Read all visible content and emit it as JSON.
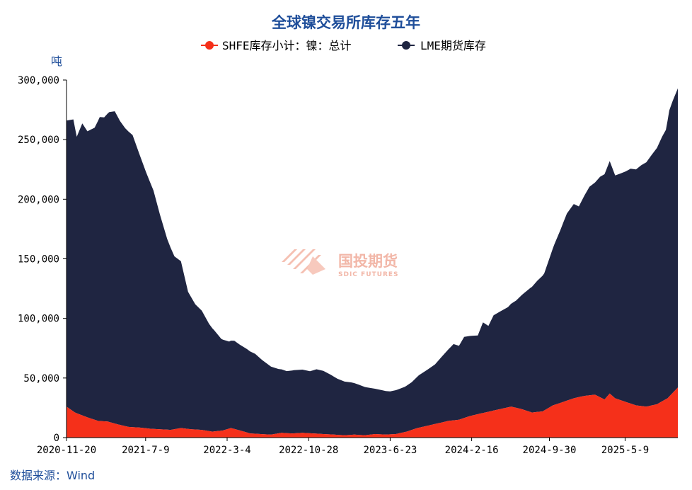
{
  "chart_data": {
    "type": "area",
    "stacked": true,
    "title": "全球镍交易所库存五年",
    "ylabel": "吨",
    "ylim": [
      0,
      300000
    ],
    "yticks": [
      "0",
      "50,000",
      "100,000",
      "150,000",
      "200,000",
      "250,000",
      "300,000"
    ],
    "yticks_values": [
      0,
      50000,
      100000,
      150000,
      200000,
      250000,
      300000
    ],
    "xlim": [
      "2020-11-20",
      "2025-10-10"
    ],
    "xticks": [
      "2020-11-20",
      "2021-7-9",
      "2022-3-4",
      "2022-10-28",
      "2023-6-23",
      "2024-2-16",
      "2024-9-30",
      "2025-5-9"
    ],
    "legend_position": "top-center",
    "grid": false,
    "series": [
      {
        "name": "SHFE库存小计：镍：总计",
        "color": "#f5301a",
        "points": [
          [
            "2020-11-20",
            26000
          ],
          [
            "2020-12-15",
            21000
          ],
          [
            "2021-1-20",
            17000
          ],
          [
            "2021-2-20",
            14000
          ],
          [
            "2021-3-20",
            13500
          ],
          [
            "2021-4-20",
            11000
          ],
          [
            "2021-5-20",
            9000
          ],
          [
            "2021-6-20",
            8500
          ],
          [
            "2021-7-20",
            7500
          ],
          [
            "2021-8-20",
            7000
          ],
          [
            "2021-9-20",
            6500
          ],
          [
            "2021-10-20",
            8000
          ],
          [
            "2021-11-20",
            7000
          ],
          [
            "2021-12-20",
            6500
          ],
          [
            "2022-1-20",
            5000
          ],
          [
            "2022-2-20",
            6000
          ],
          [
            "2022-3-15",
            8000
          ],
          [
            "2022-4-10",
            6000
          ],
          [
            "2022-5-10",
            3500
          ],
          [
            "2022-6-10",
            3000
          ],
          [
            "2022-7-10",
            2500
          ],
          [
            "2022-8-10",
            4000
          ],
          [
            "2022-9-10",
            3500
          ],
          [
            "2022-10-10",
            4000
          ],
          [
            "2022-11-10",
            3500
          ],
          [
            "2022-12-10",
            3000
          ],
          [
            "2023-1-10",
            2500
          ],
          [
            "2023-2-10",
            2000
          ],
          [
            "2023-3-10",
            2500
          ],
          [
            "2023-4-10",
            2000
          ],
          [
            "2023-5-10",
            3000
          ],
          [
            "2023-6-10",
            2500
          ],
          [
            "2023-7-10",
            3000
          ],
          [
            "2023-8-10",
            5000
          ],
          [
            "2023-9-10",
            8000
          ],
          [
            "2023-10-10",
            10000
          ],
          [
            "2023-11-10",
            12000
          ],
          [
            "2023-12-10",
            14000
          ],
          [
            "2024-1-10",
            15000
          ],
          [
            "2024-2-10",
            18000
          ],
          [
            "2024-3-10",
            20000
          ],
          [
            "2024-4-10",
            22000
          ],
          [
            "2024-5-10",
            24000
          ],
          [
            "2024-6-10",
            26000
          ],
          [
            "2024-7-10",
            24000
          ],
          [
            "2024-8-10",
            21000
          ],
          [
            "2024-9-10",
            22000
          ],
          [
            "2024-10-10",
            27000
          ],
          [
            "2024-11-10",
            30000
          ],
          [
            "2024-12-10",
            33000
          ],
          [
            "2025-1-10",
            35000
          ],
          [
            "2025-2-10",
            36000
          ],
          [
            "2025-3-10",
            32000
          ],
          [
            "2025-3-25",
            37000
          ],
          [
            "2025-4-10",
            33000
          ],
          [
            "2025-5-10",
            30000
          ],
          [
            "2025-6-10",
            27000
          ],
          [
            "2025-7-10",
            26000
          ],
          [
            "2025-8-10",
            28000
          ],
          [
            "2025-9-10",
            33000
          ],
          [
            "2025-10-10",
            42000
          ]
        ]
      },
      {
        "name": "LME期货库存",
        "color": "#1f2541",
        "points": [
          [
            "2020-11-20",
            240000
          ],
          [
            "2020-12-10",
            245000
          ],
          [
            "2020-12-20",
            232000
          ],
          [
            "2021-1-5",
            245000
          ],
          [
            "2021-1-20",
            240000
          ],
          [
            "2021-2-10",
            245000
          ],
          [
            "2021-2-25",
            255000
          ],
          [
            "2021-3-10",
            255000
          ],
          [
            "2021-3-25",
            260000
          ],
          [
            "2021-4-10",
            262000
          ],
          [
            "2021-4-25",
            255000
          ],
          [
            "2021-5-10",
            250000
          ],
          [
            "2021-6-1",
            245000
          ],
          [
            "2021-6-20",
            230000
          ],
          [
            "2021-7-10",
            215000
          ],
          [
            "2021-8-1",
            200000
          ],
          [
            "2021-8-20",
            180000
          ],
          [
            "2021-9-10",
            160000
          ],
          [
            "2021-10-1",
            145000
          ],
          [
            "2021-10-20",
            140000
          ],
          [
            "2021-11-10",
            115000
          ],
          [
            "2021-12-1",
            105000
          ],
          [
            "2021-12-20",
            100000
          ],
          [
            "2022-1-10",
            90000
          ],
          [
            "2022-1-25",
            85000
          ],
          [
            "2022-2-15",
            77000
          ],
          [
            "2022-3-10",
            73000
          ],
          [
            "2022-3-25",
            74000
          ],
          [
            "2022-4-10",
            72000
          ],
          [
            "2022-5-1",
            70000
          ],
          [
            "2022-5-25",
            67000
          ],
          [
            "2022-6-15",
            62000
          ],
          [
            "2022-7-10",
            57000
          ],
          [
            "2022-8-1",
            54000
          ],
          [
            "2022-8-25",
            52000
          ],
          [
            "2022-9-15",
            53000
          ],
          [
            "2022-10-10",
            53000
          ],
          [
            "2022-11-1",
            52000
          ],
          [
            "2022-11-20",
            54000
          ],
          [
            "2022-12-10",
            53000
          ],
          [
            "2023-1-1",
            50000
          ],
          [
            "2023-1-20",
            47000
          ],
          [
            "2023-2-10",
            45000
          ],
          [
            "2023-3-1",
            44000
          ],
          [
            "2023-3-25",
            42000
          ],
          [
            "2023-4-15",
            40000
          ],
          [
            "2023-5-10",
            38000
          ],
          [
            "2023-6-1",
            37000
          ],
          [
            "2023-6-23",
            36000
          ],
          [
            "2023-7-15",
            37000
          ],
          [
            "2023-8-5",
            38000
          ],
          [
            "2023-8-25",
            40000
          ],
          [
            "2023-9-15",
            44000
          ],
          [
            "2023-10-10",
            47000
          ],
          [
            "2023-11-1",
            50000
          ],
          [
            "2023-11-20",
            55000
          ],
          [
            "2023-12-10",
            60000
          ],
          [
            "2023-12-25",
            64000
          ],
          [
            "2024-1-10",
            62000
          ],
          [
            "2024-1-25",
            68000
          ],
          [
            "2024-2-16",
            67000
          ],
          [
            "2024-3-5",
            66000
          ],
          [
            "2024-3-20",
            76000
          ],
          [
            "2024-4-5",
            72000
          ],
          [
            "2024-4-20",
            80000
          ],
          [
            "2024-5-10",
            82000
          ],
          [
            "2024-6-1",
            84000
          ],
          [
            "2024-6-25",
            90000
          ],
          [
            "2024-7-15",
            97000
          ],
          [
            "2024-8-5",
            104000
          ],
          [
            "2024-8-25",
            110000
          ],
          [
            "2024-9-15",
            115000
          ],
          [
            "2024-9-30",
            125000
          ],
          [
            "2024-10-15",
            135000
          ],
          [
            "2024-11-1",
            145000
          ],
          [
            "2024-11-20",
            157000
          ],
          [
            "2024-12-10",
            163000
          ],
          [
            "2024-12-25",
            160000
          ],
          [
            "2025-1-10",
            168000
          ],
          [
            "2025-1-25",
            175000
          ],
          [
            "2025-2-10",
            178000
          ],
          [
            "2025-2-25",
            185000
          ],
          [
            "2025-3-10",
            189000
          ],
          [
            "2025-3-25",
            195000
          ],
          [
            "2025-4-10",
            187000
          ],
          [
            "2025-4-25",
            190000
          ],
          [
            "2025-5-9",
            193000
          ],
          [
            "2025-5-25",
            197000
          ],
          [
            "2025-6-10",
            198000
          ],
          [
            "2025-6-25",
            202000
          ],
          [
            "2025-7-10",
            205000
          ],
          [
            "2025-7-25",
            210000
          ],
          [
            "2025-8-10",
            215000
          ],
          [
            "2025-8-25",
            222000
          ],
          [
            "2025-9-5",
            226000
          ],
          [
            "2025-9-15",
            240000
          ],
          [
            "2025-9-25",
            245000
          ],
          [
            "2025-10-10",
            251000
          ]
        ]
      }
    ]
  },
  "source_text": "数据来源：Wind",
  "watermark": {
    "main": "国投期货",
    "sub": "SDIC FUTURES"
  },
  "colors": {
    "title": "#1f4e9a",
    "shfe": "#f5301a",
    "lme": "#1f2541"
  }
}
